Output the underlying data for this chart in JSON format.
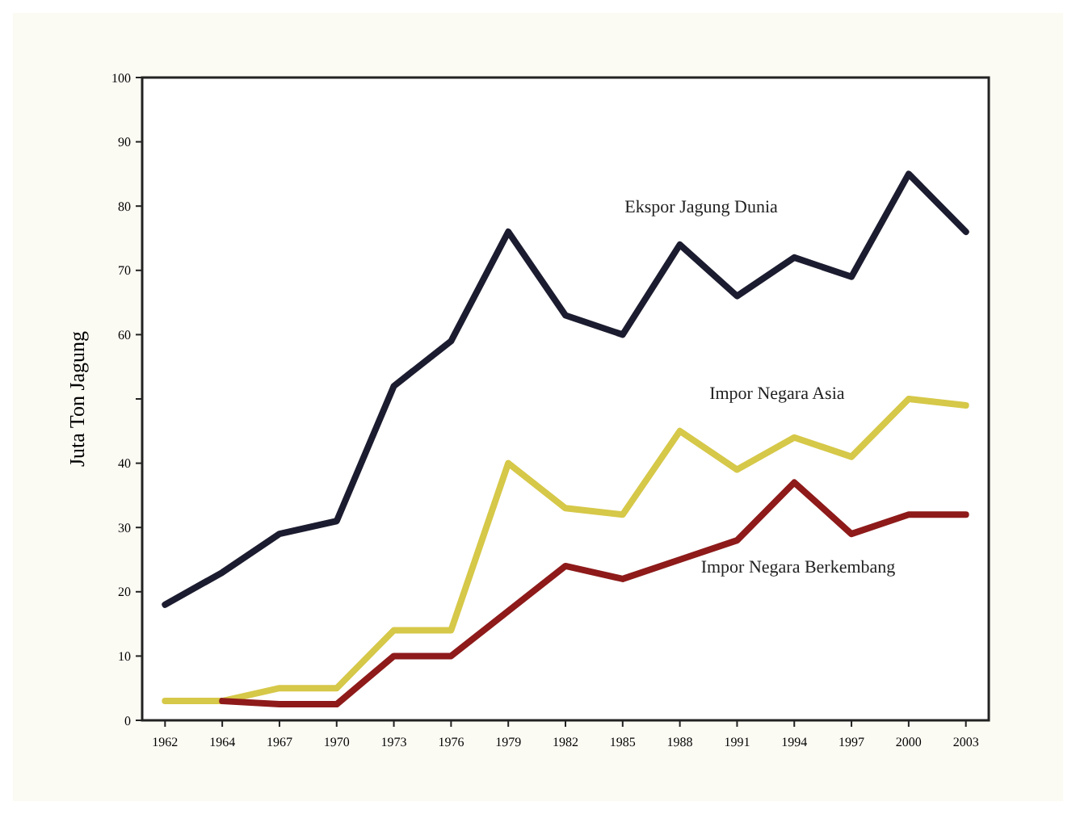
{
  "chart_data": {
    "type": "line",
    "ylabel": "Juta Ton Jagung",
    "categories": [
      "1962",
      "1964",
      "1967",
      "1970",
      "1973",
      "1976",
      "1979",
      "1982",
      "1985",
      "1988",
      "1991",
      "1994",
      "1997",
      "2000",
      "2003"
    ],
    "series": [
      {
        "name": "Ekspor Jagung Dunia",
        "color": "#1c1c30",
        "values": [
          18,
          23,
          29,
          31,
          52,
          59,
          76,
          63,
          60,
          74,
          66,
          72,
          69,
          85,
          76
        ]
      },
      {
        "name": "Impor Negara Asia",
        "color": "#d6c848",
        "values": [
          3,
          3,
          5,
          5,
          14,
          14,
          40,
          33,
          32,
          45,
          39,
          44,
          41,
          50,
          49
        ]
      },
      {
        "name": "Impor Negara Berkembang",
        "color": "#8e1a1a",
        "values": [
          null,
          3,
          2.5,
          2.5,
          10,
          10,
          17,
          24,
          22,
          25,
          28,
          37,
          29,
          32,
          32
        ]
      }
    ],
    "ylim": [
      0,
      100
    ],
    "yticks": [
      0,
      10,
      20,
      30,
      40,
      {
        "value": 50,
        "label": null
      },
      60,
      70,
      80,
      90,
      100
    ],
    "grid": false,
    "marker": "none",
    "line_style": "solid"
  }
}
